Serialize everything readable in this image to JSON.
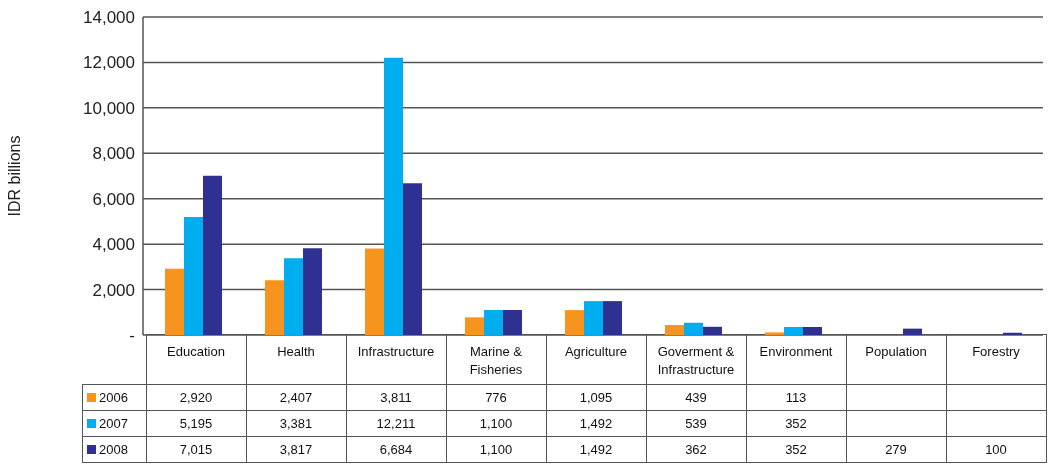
{
  "chart_data": {
    "type": "bar",
    "ylabel": "IDR billions",
    "categories": [
      "Education",
      "Health",
      "Infrastructure",
      "Marine & Fisheries",
      "Agriculture",
      "Goverment & Infrastructure",
      "Environment",
      "Population",
      "Forestry"
    ],
    "series": [
      {
        "name": "2006",
        "color": "#f7941d",
        "values": [
          2920,
          2407,
          3811,
          776,
          1095,
          439,
          113,
          null,
          null
        ],
        "value_labels": [
          "2,920",
          "2,407",
          "3,811",
          "776",
          "1,095",
          "439",
          "113",
          null,
          null
        ]
      },
      {
        "name": "2007",
        "color": "#00aeef",
        "values": [
          5195,
          3381,
          12211,
          1100,
          1492,
          539,
          352,
          null,
          null
        ],
        "value_labels": [
          "5,195",
          "3,381",
          "12,211",
          "1,100",
          "1,492",
          "539",
          "352",
          null,
          null
        ]
      },
      {
        "name": "2008",
        "color": "#2e3192",
        "values": [
          7015,
          3817,
          6684,
          1100,
          1492,
          362,
          352,
          279,
          100
        ],
        "value_labels": [
          "7,015",
          "3,817",
          "6,684",
          "1,100",
          "1,492",
          "362",
          "352",
          "279",
          "100"
        ]
      }
    ],
    "ylim": [
      0,
      14000
    ],
    "yticks": [
      {
        "value": 0,
        "label": "-"
      },
      {
        "value": 2000,
        "label": "2,000"
      },
      {
        "value": 4000,
        "label": "4,000"
      },
      {
        "value": 6000,
        "label": "6,000"
      },
      {
        "value": 8000,
        "label": "8,000"
      },
      {
        "value": 10000,
        "label": "10,000"
      },
      {
        "value": 12000,
        "label": "12,000"
      },
      {
        "value": 14000,
        "label": "14,000"
      }
    ],
    "grid": "y",
    "legend": "bottom"
  }
}
